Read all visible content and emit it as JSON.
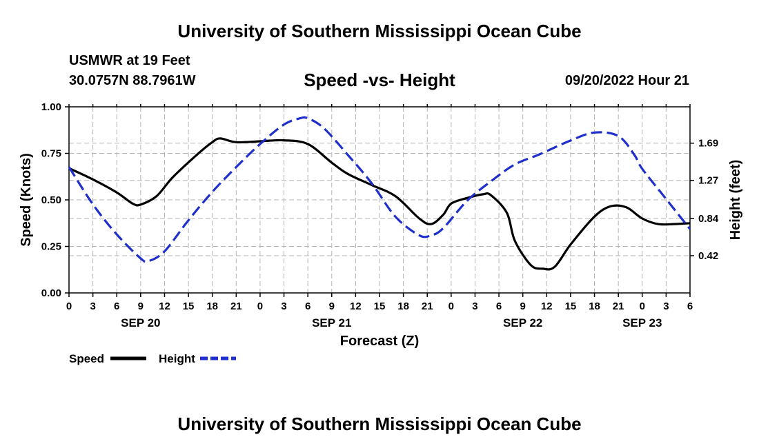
{
  "header": {
    "title": "University of Southern Mississippi Ocean Cube",
    "station": "USMWR at 19 Feet",
    "coordinates": "30.0757N  88.7961W",
    "date_hour": "09/20/2022 Hour 21"
  },
  "footer": {
    "title": "University of Southern Mississippi Ocean Cube"
  },
  "chart_data": {
    "type": "line",
    "title": "Speed -vs- Height",
    "xlabel": "Forecast (Z)",
    "ylabel_left": "Speed (Knots)",
    "ylabel_right": "Height (feet)",
    "x_range_hours": [
      0,
      78
    ],
    "x_tick_step_hours": 3,
    "x_ticks": [
      "0",
      "3",
      "6",
      "9",
      "12",
      "15",
      "18",
      "21",
      "0",
      "3",
      "6",
      "9",
      "12",
      "15",
      "18",
      "21",
      "0",
      "3",
      "6",
      "9",
      "12",
      "15",
      "18",
      "21",
      "0",
      "3",
      "6"
    ],
    "date_labels": [
      {
        "label": "SEP 20",
        "hour": 9
      },
      {
        "label": "SEP 21",
        "hour": 33
      },
      {
        "label": "SEP 22",
        "hour": 57
      },
      {
        "label": "SEP 23",
        "hour": 72
      }
    ],
    "ylim_left": [
      0,
      1.0
    ],
    "yticks_left": [
      "0.00",
      "0.25",
      "0.50",
      "0.75",
      "1.00"
    ],
    "ylim_right": [
      0.0,
      2.1
    ],
    "yticks_right": [
      "0.42",
      "0.84",
      "1.27",
      "1.69"
    ],
    "grid": true,
    "legend": [
      {
        "name": "Speed",
        "color": "#000000",
        "style": "solid"
      },
      {
        "name": "Height",
        "color": "#1f2fcc",
        "style": "dashed"
      }
    ],
    "series": [
      {
        "name": "Speed",
        "axis": "left",
        "color": "#000000",
        "dash": "solid",
        "x": [
          0,
          3,
          6,
          8,
          9,
          11,
          13,
          16,
          18,
          19,
          21,
          24,
          27,
          30,
          33,
          35,
          38,
          41,
          44,
          45.5,
          47,
          48,
          50,
          52,
          53,
          55,
          56,
          58,
          59.5,
          61,
          63,
          66,
          68,
          70,
          72,
          74,
          76,
          78
        ],
        "values": [
          0.67,
          0.61,
          0.54,
          0.48,
          0.475,
          0.52,
          0.62,
          0.74,
          0.81,
          0.83,
          0.81,
          0.815,
          0.82,
          0.8,
          0.7,
          0.64,
          0.58,
          0.52,
          0.4,
          0.37,
          0.42,
          0.48,
          0.51,
          0.53,
          0.525,
          0.43,
          0.28,
          0.15,
          0.13,
          0.14,
          0.26,
          0.41,
          0.465,
          0.46,
          0.4,
          0.37,
          0.37,
          0.375
        ]
      },
      {
        "name": "Height",
        "axis": "right",
        "color": "#1f2fcc",
        "dash": "dashed",
        "x": [
          0,
          3,
          6,
          9,
          10,
          12,
          15,
          18,
          21,
          24,
          27,
          29,
          30,
          32,
          35,
          38,
          41,
          44,
          45.5,
          47,
          50,
          53,
          56,
          59,
          63,
          66,
          69,
          71,
          72,
          75,
          78
        ],
        "values": [
          1.42,
          1.0,
          0.66,
          0.39,
          0.36,
          0.47,
          0.82,
          1.14,
          1.42,
          1.68,
          1.9,
          1.97,
          1.97,
          1.86,
          1.56,
          1.24,
          0.86,
          0.65,
          0.65,
          0.73,
          1.04,
          1.26,
          1.45,
          1.56,
          1.72,
          1.81,
          1.77,
          1.56,
          1.4,
          1.06,
          0.72
        ]
      }
    ]
  }
}
